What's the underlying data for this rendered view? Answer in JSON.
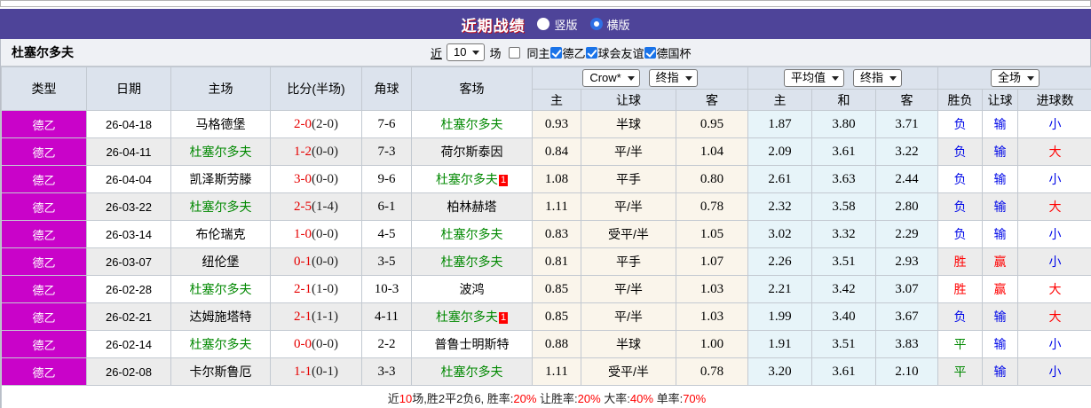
{
  "titlebar": {
    "title": "近期战绩",
    "radios": [
      {
        "label": "竖版",
        "selected": false
      },
      {
        "label": "横版",
        "selected": true
      }
    ]
  },
  "team_row": {
    "team": "杜塞尔多夫",
    "near_link": "近",
    "match_count": "10",
    "games_label": "场",
    "checkboxes": [
      {
        "label": "同主",
        "checked": false
      },
      {
        "label": "德乙",
        "checked": true
      },
      {
        "label": "球会友谊",
        "checked": true
      },
      {
        "label": "德国杯",
        "checked": true
      }
    ]
  },
  "table": {
    "left_headers": [
      "类型",
      "日期",
      "主场",
      "比分(半场)",
      "角球",
      "客场"
    ],
    "group_selects": {
      "odds": [
        "Crow*",
        "终指"
      ],
      "avg": [
        "平均值",
        "终指"
      ],
      "result": [
        "全场"
      ]
    },
    "sub_headers": [
      "主",
      "让球",
      "客",
      "主",
      "和",
      "客",
      "胜负",
      "让球",
      "进球数"
    ],
    "result_color_map": {
      "胜": "red",
      "平": "green",
      "负": "blue",
      "赢": "red",
      "输": "blue",
      "大": "red",
      "小": "blue"
    },
    "rows": [
      {
        "league": "德乙",
        "date": "26-04-18",
        "home": {
          "name": "马格德堡",
          "green": false,
          "badge": null
        },
        "score_ft": "2-0",
        "score_ht": "(2-0)",
        "corner": "7-6",
        "away": {
          "name": "杜塞尔多夫",
          "green": true,
          "badge": null
        },
        "odds": [
          "0.93",
          "半球",
          "0.95"
        ],
        "avg": [
          "1.87",
          "3.80",
          "3.71"
        ],
        "result": "负",
        "handicap": "输",
        "goals": "小"
      },
      {
        "league": "德乙",
        "date": "26-04-11",
        "home": {
          "name": "杜塞尔多夫",
          "green": true,
          "badge": null
        },
        "score_ft": "1-2",
        "score_ht": "(0-0)",
        "corner": "7-3",
        "away": {
          "name": "荷尔斯泰因",
          "green": false,
          "badge": null
        },
        "odds": [
          "0.84",
          "平/半",
          "1.04"
        ],
        "avg": [
          "2.09",
          "3.61",
          "3.22"
        ],
        "result": "负",
        "handicap": "输",
        "goals": "大"
      },
      {
        "league": "德乙",
        "date": "26-04-04",
        "home": {
          "name": "凯泽斯劳滕",
          "green": false,
          "badge": null
        },
        "score_ft": "3-0",
        "score_ht": "(0-0)",
        "corner": "9-6",
        "away": {
          "name": "杜塞尔多夫",
          "green": true,
          "badge": "1"
        },
        "odds": [
          "1.08",
          "平手",
          "0.80"
        ],
        "avg": [
          "2.61",
          "3.63",
          "2.44"
        ],
        "result": "负",
        "handicap": "输",
        "goals": "小"
      },
      {
        "league": "德乙",
        "date": "26-03-22",
        "home": {
          "name": "杜塞尔多夫",
          "green": true,
          "badge": null
        },
        "score_ft": "2-5",
        "score_ht": "(1-4)",
        "corner": "6-1",
        "away": {
          "name": "柏林赫塔",
          "green": false,
          "badge": null
        },
        "odds": [
          "1.11",
          "平/半",
          "0.78"
        ],
        "avg": [
          "2.32",
          "3.58",
          "2.80"
        ],
        "result": "负",
        "handicap": "输",
        "goals": "大"
      },
      {
        "league": "德乙",
        "date": "26-03-14",
        "home": {
          "name": "布伦瑞克",
          "green": false,
          "badge": null
        },
        "score_ft": "1-0",
        "score_ht": "(0-0)",
        "corner": "4-5",
        "away": {
          "name": "杜塞尔多夫",
          "green": true,
          "badge": null
        },
        "odds": [
          "0.83",
          "受平/半",
          "1.05"
        ],
        "avg": [
          "3.02",
          "3.32",
          "2.29"
        ],
        "result": "负",
        "handicap": "输",
        "goals": "小"
      },
      {
        "league": "德乙",
        "date": "26-03-07",
        "home": {
          "name": "纽伦堡",
          "green": false,
          "badge": null
        },
        "score_ft": "0-1",
        "score_ht": "(0-0)",
        "corner": "3-5",
        "away": {
          "name": "杜塞尔多夫",
          "green": true,
          "badge": null
        },
        "odds": [
          "0.81",
          "平手",
          "1.07"
        ],
        "avg": [
          "2.26",
          "3.51",
          "2.93"
        ],
        "result": "胜",
        "handicap": "赢",
        "goals": "小"
      },
      {
        "league": "德乙",
        "date": "26-02-28",
        "home": {
          "name": "杜塞尔多夫",
          "green": true,
          "badge": null
        },
        "score_ft": "2-1",
        "score_ht": "(1-0)",
        "corner": "10-3",
        "away": {
          "name": "波鸿",
          "green": false,
          "badge": null
        },
        "odds": [
          "0.85",
          "平/半",
          "1.03"
        ],
        "avg": [
          "2.21",
          "3.42",
          "3.07"
        ],
        "result": "胜",
        "handicap": "赢",
        "goals": "大"
      },
      {
        "league": "德乙",
        "date": "26-02-21",
        "home": {
          "name": "达姆施塔特",
          "green": false,
          "badge": null
        },
        "score_ft": "2-1",
        "score_ht": "(1-1)",
        "corner": "4-11",
        "away": {
          "name": "杜塞尔多夫",
          "green": true,
          "badge": "1"
        },
        "odds": [
          "0.85",
          "平/半",
          "1.03"
        ],
        "avg": [
          "1.99",
          "3.40",
          "3.67"
        ],
        "result": "负",
        "handicap": "输",
        "goals": "大"
      },
      {
        "league": "德乙",
        "date": "26-02-14",
        "home": {
          "name": "杜塞尔多夫",
          "green": true,
          "badge": null
        },
        "score_ft": "0-0",
        "score_ht": "(0-0)",
        "corner": "2-2",
        "away": {
          "name": "普鲁士明斯特",
          "green": false,
          "badge": null
        },
        "odds": [
          "0.88",
          "半球",
          "1.00"
        ],
        "avg": [
          "1.91",
          "3.51",
          "3.83"
        ],
        "result": "平",
        "handicap": "输",
        "goals": "小"
      },
      {
        "league": "德乙",
        "date": "26-02-08",
        "home": {
          "name": "卡尔斯鲁厄",
          "green": false,
          "badge": null
        },
        "score_ft": "1-1",
        "score_ht": "(0-1)",
        "corner": "3-3",
        "away": {
          "name": "杜塞尔多夫",
          "green": true,
          "badge": null
        },
        "odds": [
          "1.11",
          "受平/半",
          "0.78"
        ],
        "avg": [
          "3.20",
          "3.61",
          "2.10"
        ],
        "result": "平",
        "handicap": "输",
        "goals": "小"
      }
    ]
  },
  "footer": {
    "segments": [
      {
        "t": "近",
        "red": false
      },
      {
        "t": "10",
        "red": true
      },
      {
        "t": "场,胜2平2负6, 胜率:",
        "red": false
      },
      {
        "t": "20%",
        "red": true
      },
      {
        "t": " 让胜率:",
        "red": false
      },
      {
        "t": "20%",
        "red": true
      },
      {
        "t": " 大率:",
        "red": false
      },
      {
        "t": "40%",
        "red": true
      },
      {
        "t": " 单率:",
        "red": false
      },
      {
        "t": "70%",
        "red": true
      }
    ]
  },
  "colors": {
    "title_bar": "#4e4499",
    "league_magenta": "#c903c9",
    "team_green": "#008800",
    "score_red": "#e60000",
    "result_red": "#ff0000",
    "result_blue": "#0008e8",
    "result_green": "#008800",
    "odds_col_bg": "#faf5eb",
    "avg_col_bg": "#e7f4f9",
    "header_bg": "#dce3ed",
    "alt_row_bg": "#ececec",
    "checkbox_blue": "#1a73e8"
  }
}
